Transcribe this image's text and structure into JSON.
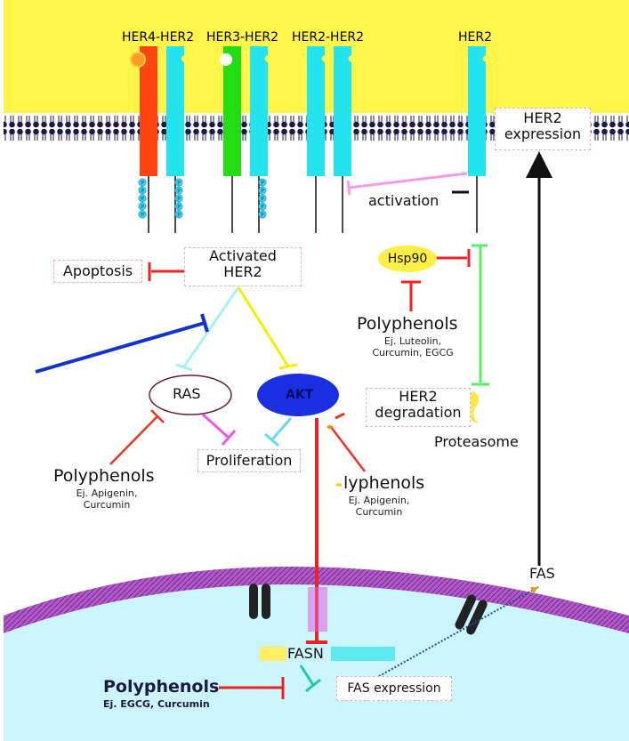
{
  "receptors": {
    "her4_her2": "HER4-HER2",
    "her3_her2": "HER3-HER2",
    "her2_her2": "HER2-HER2",
    "her2": "HER2"
  },
  "phospho_label": "P",
  "labels": {
    "her2_expression": "HER2\nexpression",
    "activation": "activation",
    "apoptosis": "Apoptosis",
    "activated_her2": "Activated\nHER2",
    "hsp90": "Hsp90",
    "ras": "RAS",
    "akt": "AKT",
    "proliferation": "Proliferation",
    "her2_degradation": "HER2\ndegradation",
    "proteasome": "Proteasome",
    "fas": "FAS",
    "fasn": "FASN",
    "fas_expression": "FAS expression"
  },
  "polyphenols": {
    "top_right": {
      "title": "Polyphenols",
      "examples": "Ej. Luteolin,\nCurcumin, EGCG"
    },
    "left": {
      "title": "Polyphenols",
      "examples": "Ej. Apigenin,\nCurcumin"
    },
    "middle": {
      "title": "lyphenols",
      "examples": "Ej. Apigenin,\nCurcumin"
    },
    "bottom": {
      "title": "Polyphenols",
      "examples": "Ej. EGCG, Curcumin"
    }
  },
  "colors": {
    "membrane_bg": "#fff44a",
    "her4": "#ff4411",
    "her2": "#22e3ee",
    "her3": "#22dd11",
    "inhibit_red": "#ee2222",
    "blue_arrow": "#1133cc",
    "akt_fill": "#1a2fe0",
    "nucleus": "#ccf4fb",
    "nucleus_membrane": "#a94cc2"
  }
}
